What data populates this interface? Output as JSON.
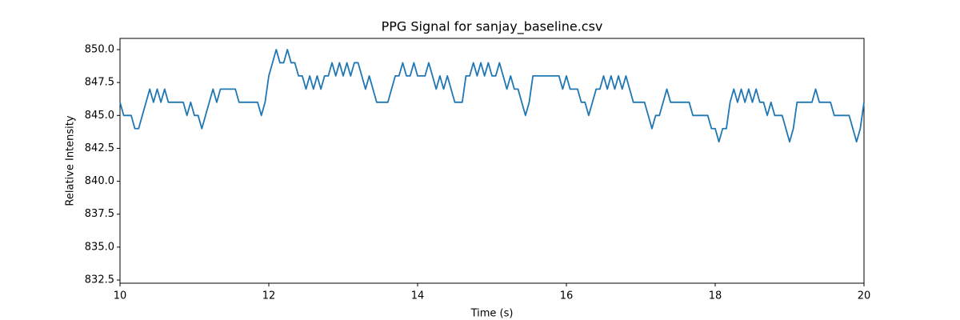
{
  "chart_data": {
    "type": "line",
    "title": "PPG Signal for sanjay_baseline.csv",
    "x_label": "Time (s)",
    "y_label": "Relative Intensity",
    "color": "#1f77b4",
    "x": [
      10.0,
      10.05,
      10.1,
      10.15,
      10.2,
      10.25,
      10.3,
      10.35,
      10.4,
      10.45,
      10.5,
      10.55,
      10.6,
      10.65,
      10.7,
      10.75,
      10.8,
      10.85,
      10.9,
      10.95,
      11.0,
      11.05,
      11.1,
      11.15,
      11.2,
      11.25,
      11.3,
      11.35,
      11.4,
      11.45,
      11.5,
      11.55,
      11.6,
      11.65,
      11.7,
      11.75,
      11.8,
      11.85,
      11.9,
      11.95,
      12.0,
      12.05,
      12.1,
      12.15,
      12.2,
      12.25,
      12.3,
      12.35,
      12.4,
      12.45,
      12.5,
      12.55,
      12.6,
      12.65,
      12.7,
      12.75,
      12.8,
      12.85,
      12.9,
      12.95,
      13.0,
      13.05,
      13.1,
      13.15,
      13.2,
      13.25,
      13.3,
      13.35,
      13.4,
      13.45,
      13.5,
      13.55,
      13.6,
      13.65,
      13.7,
      13.75,
      13.8,
      13.85,
      13.9,
      13.95,
      14.0,
      14.05,
      14.1,
      14.15,
      14.2,
      14.25,
      14.3,
      14.35,
      14.4,
      14.45,
      14.5,
      14.55,
      14.6,
      14.65,
      14.7,
      14.75,
      14.8,
      14.85,
      14.9,
      14.95,
      15.0,
      15.05,
      15.1,
      15.15,
      15.2,
      15.25,
      15.3,
      15.35,
      15.4,
      15.45,
      15.5,
      15.55,
      15.6,
      15.65,
      15.7,
      15.75,
      15.8,
      15.85,
      15.9,
      15.95,
      16.0,
      16.05,
      16.1,
      16.15,
      16.2,
      16.25,
      16.3,
      16.35,
      16.4,
      16.45,
      16.5,
      16.55,
      16.6,
      16.65,
      16.7,
      16.75,
      16.8,
      16.85,
      16.9,
      16.95,
      17.0,
      17.05,
      17.1,
      17.15,
      17.2,
      17.25,
      17.3,
      17.35,
      17.4,
      17.45,
      17.5,
      17.55,
      17.6,
      17.65,
      17.7,
      17.75,
      17.8,
      17.85,
      17.9,
      17.95,
      18.0,
      18.05,
      18.1,
      18.15,
      18.2,
      18.25,
      18.3,
      18.35,
      18.4,
      18.45,
      18.5,
      18.55,
      18.6,
      18.65,
      18.7,
      18.75,
      18.8,
      18.85,
      18.9,
      18.95,
      19.0,
      19.05,
      19.1,
      19.15,
      19.2,
      19.25,
      19.3,
      19.35,
      19.4,
      19.45,
      19.5,
      19.55,
      19.6,
      19.65,
      19.7,
      19.75,
      19.8,
      19.85,
      19.9,
      19.95,
      20.0
    ],
    "values": [
      846,
      845,
      845,
      845,
      844,
      844,
      845,
      846,
      847,
      846,
      847,
      846,
      847,
      846,
      846,
      846,
      846,
      846,
      845,
      846,
      845,
      845,
      844,
      845,
      846,
      847,
      846,
      847,
      847,
      847,
      847,
      847,
      846,
      846,
      846,
      846,
      846,
      846,
      845,
      846,
      848,
      849,
      850,
      849,
      849,
      850,
      849,
      849,
      848,
      848,
      847,
      848,
      847,
      848,
      847,
      848,
      848,
      849,
      848,
      849,
      848,
      849,
      848,
      849,
      849,
      848,
      847,
      848,
      847,
      846,
      846,
      846,
      846,
      847,
      848,
      848,
      849,
      848,
      848,
      849,
      848,
      848,
      848,
      849,
      848,
      847,
      848,
      847,
      848,
      847,
      846,
      846,
      846,
      848,
      848,
      849,
      848,
      849,
      848,
      849,
      848,
      848,
      849,
      848,
      847,
      848,
      847,
      847,
      846,
      845,
      846,
      848,
      848,
      848,
      848,
      848,
      848,
      848,
      848,
      847,
      848,
      847,
      847,
      847,
      846,
      846,
      845,
      846,
      847,
      847,
      848,
      847,
      848,
      847,
      848,
      847,
      848,
      847,
      846,
      846,
      846,
      846,
      845,
      844,
      845,
      845,
      846,
      847,
      846,
      846,
      846,
      846,
      846,
      846,
      845,
      845,
      845,
      845,
      845,
      844,
      844,
      843,
      844,
      844,
      846,
      847,
      846,
      847,
      846,
      847,
      846,
      847,
      846,
      846,
      845,
      846,
      845,
      845,
      845,
      844,
      843,
      844,
      846,
      846,
      846,
      846,
      846,
      847,
      846,
      846,
      846,
      846,
      845,
      845,
      845,
      845,
      845,
      844,
      843,
      844,
      846
    ],
    "xlim": [
      10,
      20
    ],
    "xticks": [
      10,
      12,
      14,
      16,
      18,
      20
    ],
    "ylim": [
      832.26,
      850.85
    ],
    "yticks": [
      832.5,
      {
        "value": 835,
        "label": "835.0"
      },
      837.5,
      {
        "value": 840,
        "label": "840.0"
      },
      842.5,
      {
        "value": 845,
        "label": "845.0"
      },
      847.5,
      {
        "value": 850,
        "label": "850.0"
      }
    ]
  }
}
